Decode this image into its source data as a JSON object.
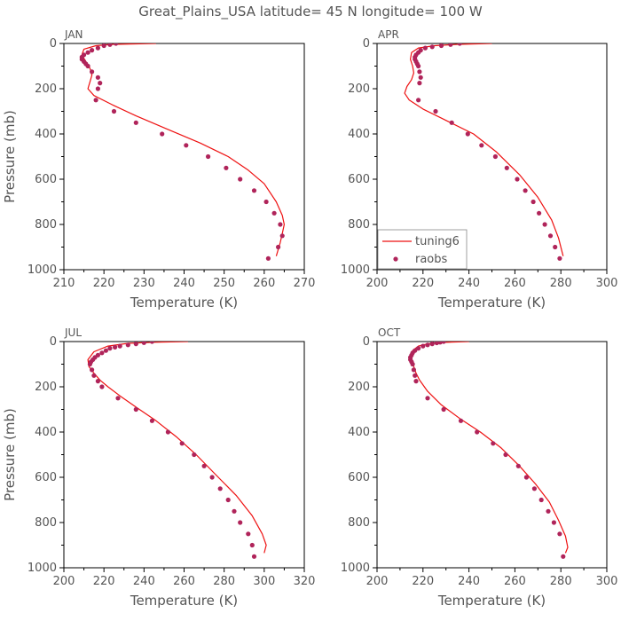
{
  "title": "Great_Plains_USA   latitude= 45 N longitude= 100 W",
  "colors": {
    "model": "#ee1111",
    "obs": "#b0245a",
    "axis": "#000000",
    "text": "#555555"
  },
  "chart_data": [
    {
      "type": "line",
      "panel": "JAN",
      "xlabel": "Temperature (K)",
      "ylabel": "Pressure (mb)",
      "xlim": [
        210,
        270
      ],
      "ylim": [
        1000,
        0
      ],
      "xticks": [
        210,
        220,
        230,
        240,
        250,
        260,
        270
      ],
      "yticks": [
        0,
        200,
        400,
        600,
        800,
        1000
      ],
      "series": [
        {
          "name": "tuning6",
          "kind": "line",
          "x": [
            233,
            222,
            218,
            215,
            214.5,
            215.5,
            216.5,
            217,
            216.5,
            216,
            217.5,
            222,
            228,
            236,
            244,
            251,
            256,
            260,
            263,
            264.5,
            265,
            264.5,
            264,
            263
          ],
          "y": [
            0,
            4,
            10,
            25,
            50,
            80,
            110,
            140,
            170,
            200,
            230,
            270,
            320,
            380,
            440,
            500,
            560,
            620,
            700,
            760,
            800,
            840,
            880,
            940
          ]
        },
        {
          "name": "raobs",
          "kind": "scatter",
          "x": [
            223,
            221.5,
            220,
            218.5,
            217,
            216,
            215,
            214.5,
            214.5,
            215,
            215.5,
            216,
            217,
            218.5,
            219,
            218.5,
            218,
            222.5,
            228,
            234.5,
            240.5,
            246,
            250.5,
            254,
            257.5,
            260.5,
            262.5,
            264,
            264.5,
            263.5,
            261
          ],
          "y": [
            0,
            5,
            10,
            20,
            30,
            40,
            50,
            60,
            70,
            80,
            90,
            100,
            125,
            150,
            175,
            200,
            250,
            300,
            350,
            400,
            450,
            500,
            550,
            600,
            650,
            700,
            750,
            800,
            850,
            900,
            950
          ]
        }
      ]
    },
    {
      "type": "line",
      "panel": "APR",
      "xlabel": "Temperature (K)",
      "ylabel": "",
      "xlim": [
        200,
        300
      ],
      "ylim": [
        1000,
        0
      ],
      "xticks": [
        200,
        220,
        240,
        260,
        280,
        300
      ],
      "yticks": [
        0,
        200,
        400,
        600,
        800,
        1000
      ],
      "series": [
        {
          "name": "tuning6",
          "kind": "line",
          "x": [
            250,
            235,
            225,
            218,
            215,
            214.5,
            215.5,
            216,
            215,
            213,
            212,
            214,
            220,
            230,
            242,
            252,
            262,
            270,
            276,
            279,
            281
          ],
          "y": [
            0,
            4,
            10,
            20,
            40,
            70,
            100,
            130,
            160,
            190,
            220,
            250,
            290,
            340,
            400,
            480,
            580,
            680,
            780,
            860,
            940
          ]
        },
        {
          "name": "raobs",
          "kind": "scatter",
          "x": [
            236,
            232,
            228,
            224,
            221,
            219,
            218,
            217,
            216.5,
            216.5,
            217,
            217.5,
            218,
            218.5,
            219,
            218.5,
            218,
            225.5,
            232.5,
            239.5,
            245.5,
            251.5,
            256.5,
            261,
            264.5,
            268,
            270.5,
            273,
            275.5,
            277.5,
            279.5
          ],
          "y": [
            0,
            5,
            10,
            15,
            20,
            30,
            40,
            50,
            60,
            70,
            80,
            90,
            100,
            125,
            150,
            175,
            250,
            300,
            350,
            400,
            450,
            500,
            550,
            600,
            650,
            700,
            750,
            800,
            850,
            900,
            950
          ]
        }
      ],
      "legend": {
        "position": "bottom-left",
        "entries": [
          "tuning6",
          "raobs"
        ]
      }
    },
    {
      "type": "line",
      "panel": "JUL",
      "xlabel": "Temperature (K)",
      "ylabel": "Pressure (mb)",
      "xlim": [
        200,
        320
      ],
      "ylim": [
        1000,
        0
      ],
      "xticks": [
        200,
        220,
        240,
        260,
        280,
        300,
        320
      ],
      "yticks": [
        0,
        200,
        400,
        600,
        800,
        1000
      ],
      "series": [
        {
          "name": "tuning6",
          "kind": "line",
          "x": [
            262,
            245,
            232,
            222,
            215,
            212,
            212.5,
            215,
            218,
            222,
            228,
            236,
            246,
            256,
            266,
            276,
            286,
            294,
            299,
            301,
            300
          ],
          "y": [
            0,
            3,
            8,
            20,
            45,
            80,
            110,
            140,
            170,
            200,
            240,
            290,
            350,
            420,
            500,
            590,
            680,
            770,
            850,
            900,
            935
          ]
        },
        {
          "name": "raobs",
          "kind": "scatter",
          "x": [
            244,
            240,
            236,
            232,
            228,
            225.5,
            223,
            221,
            219,
            217,
            215.5,
            214.5,
            213.5,
            213,
            214,
            215,
            217,
            219,
            227,
            236,
            244,
            252,
            259,
            265,
            270,
            274,
            278,
            282,
            285,
            288,
            292,
            294,
            295
          ],
          "y": [
            0,
            5,
            10,
            15,
            20,
            25,
            30,
            40,
            50,
            60,
            70,
            80,
            90,
            100,
            125,
            150,
            175,
            200,
            250,
            300,
            350,
            400,
            450,
            500,
            550,
            600,
            650,
            700,
            750,
            800,
            850,
            900,
            950
          ]
        }
      ]
    },
    {
      "type": "line",
      "panel": "OCT",
      "xlabel": "Temperature (K)",
      "ylabel": "",
      "xlim": [
        200,
        300
      ],
      "ylim": [
        1000,
        0
      ],
      "xticks": [
        200,
        220,
        240,
        260,
        280,
        300
      ],
      "yticks": [
        0,
        200,
        400,
        600,
        800,
        1000
      ],
      "series": [
        {
          "name": "tuning6",
          "kind": "line",
          "x": [
            240,
            228,
            222,
            218,
            215.5,
            214.5,
            215,
            216,
            217,
            218.5,
            222,
            228,
            236,
            245,
            254,
            262,
            269,
            275,
            279,
            282,
            283,
            282
          ],
          "y": [
            0,
            4,
            10,
            20,
            40,
            60,
            80,
            110,
            140,
            170,
            220,
            280,
            340,
            400,
            470,
            550,
            630,
            710,
            790,
            860,
            910,
            935
          ]
        },
        {
          "name": "raobs",
          "kind": "scatter",
          "x": [
            229,
            227.5,
            226,
            224,
            222,
            220,
            218,
            216.5,
            215.5,
            215,
            214.5,
            214.5,
            215,
            215.5,
            216,
            216.5,
            217,
            222,
            229,
            236.5,
            243.5,
            250.5,
            256,
            261.5,
            265,
            268.5,
            271.5,
            274.5,
            277,
            279.5,
            281
          ],
          "y": [
            0,
            3,
            6,
            10,
            15,
            20,
            30,
            40,
            50,
            60,
            70,
            80,
            90,
            100,
            125,
            150,
            175,
            250,
            300,
            350,
            400,
            450,
            500,
            550,
            600,
            650,
            700,
            750,
            800,
            850,
            950
          ]
        }
      ]
    }
  ]
}
